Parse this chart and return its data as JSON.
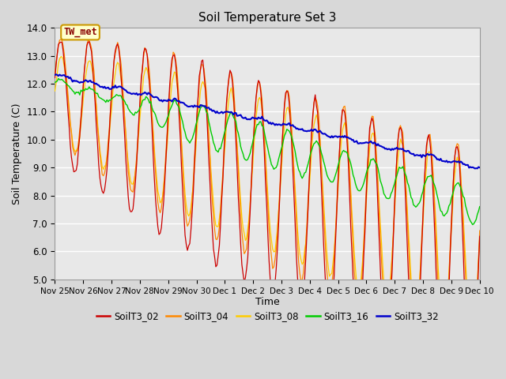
{
  "title": "Soil Temperature Set 3",
  "xlabel": "Time",
  "ylabel": "Soil Temperature (C)",
  "ylim": [
    5.0,
    14.0
  ],
  "yticks": [
    5.0,
    6.0,
    7.0,
    8.0,
    9.0,
    10.0,
    11.0,
    12.0,
    13.0,
    14.0
  ],
  "x_tick_labels": [
    "Nov 25",
    "Nov 26",
    "Nov 27",
    "Nov 28",
    "Nov 29",
    "Nov 30",
    "Dec 1",
    "Dec 2",
    "Dec 3",
    "Dec 4",
    "Dec 5",
    "Dec 6",
    "Dec 7",
    "Dec 8",
    "Dec 9",
    "Dec 10"
  ],
  "legend_entries": [
    "SoilT3_02",
    "SoilT3_04",
    "SoilT3_08",
    "SoilT3_16",
    "SoilT3_32"
  ],
  "legend_colors": [
    "#cc0000",
    "#ff8800",
    "#ffcc00",
    "#00cc00",
    "#0000cc"
  ],
  "annotation_text": "TW_met",
  "bg_color": "#d8d8d8",
  "plot_bg_color": "#e8e8e8",
  "grid_color": "#ffffff",
  "figsize": [
    6.4,
    4.8
  ],
  "dpi": 100
}
